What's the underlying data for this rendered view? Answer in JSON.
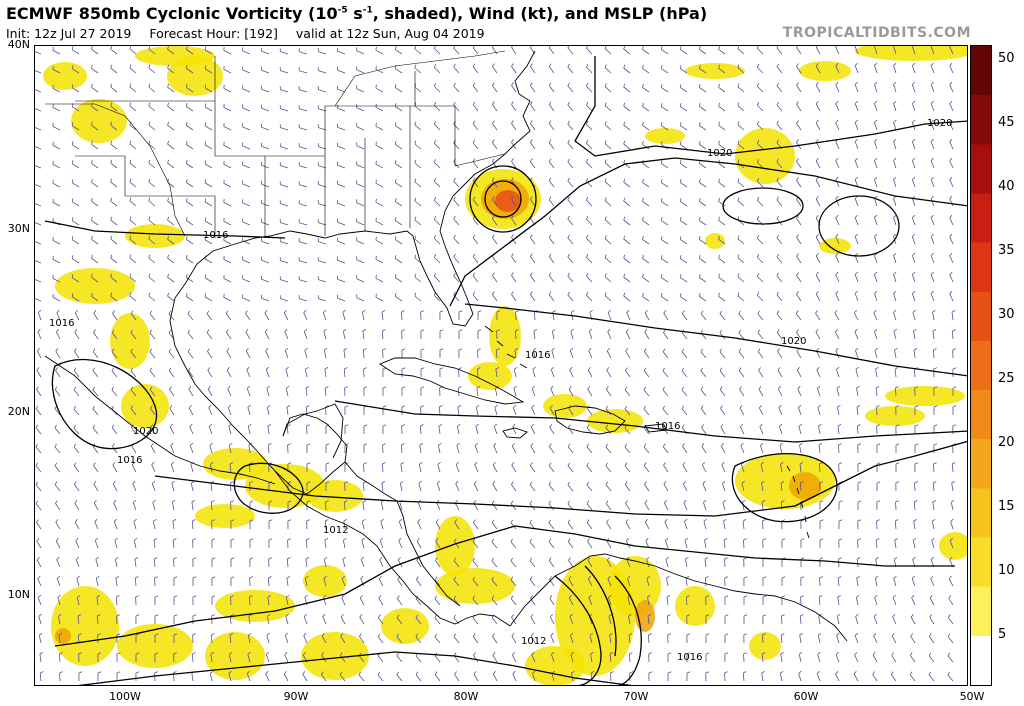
{
  "header": {
    "title": "ECMWF 850mb Cyclonic Vorticity (10",
    "title_exp": "-5",
    "title_unit": " s",
    "title_unit_exp": "-1",
    "title_rest": ", shaded), Wind (kt), and MSLP (hPa)",
    "init": "Init: 12z Jul 27 2019",
    "forecast_hour": "Forecast Hour: [192]",
    "valid": "valid at 12z Sun, Aug 04 2019",
    "brand": "TROPICALTIDBITS.COM"
  },
  "map": {
    "lat_labels": [
      "40N",
      "30N",
      "20N",
      "10N"
    ],
    "lon_labels": [
      "100W",
      "90W",
      "80W",
      "70W",
      "60W",
      "50W"
    ],
    "isobar_labels": [
      "1020",
      "1020",
      "1020",
      "1016",
      "1016",
      "1016",
      "1016",
      "1020",
      "1016",
      "1012",
      "1012",
      "1016"
    ],
    "colors": {
      "land_border": "#000000",
      "isobar": "#000000",
      "wind_barb": "#5a4f9a",
      "vort_low": "#f4e300",
      "vort_mid": "#f0a300",
      "vort_high": "#e8501a"
    }
  },
  "colorbar": {
    "labels": [
      "50",
      "45",
      "40",
      "35",
      "30",
      "25",
      "20",
      "15",
      "10",
      "5"
    ],
    "colors": [
      "#ffffff",
      "#fdf05a",
      "#f7dc2a",
      "#f6c31e",
      "#f3a71c",
      "#f08b1a",
      "#ec6e18",
      "#e65116",
      "#dc3614",
      "#c91e12",
      "#a80e0e",
      "#840909",
      "#620505"
    ]
  }
}
